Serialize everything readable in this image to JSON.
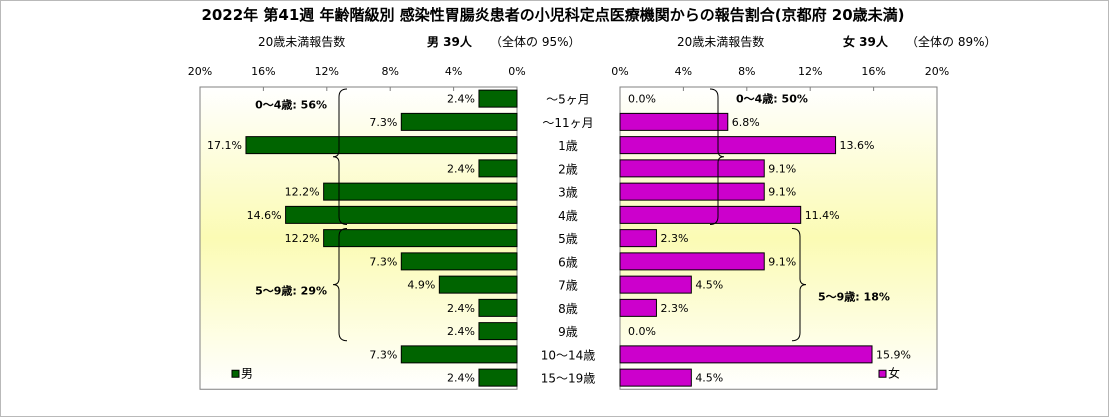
{
  "chart_data": {
    "type": "bar",
    "title": "2022年 第41週  年齢階級別 感染性胃腸炎患者の小児科定点医療機関からの報告割合(京都府 20歳未満)",
    "categories": [
      "～5ヶ月",
      "～11ヶ月",
      "1歳",
      "2歳",
      "3歳",
      "4歳",
      "5歳",
      "6歳",
      "7歳",
      "8歳",
      "9歳",
      "10～14歳",
      "15～19歳"
    ],
    "unit": "%",
    "xlim": [
      0,
      20
    ],
    "ticks": [
      0,
      4,
      8,
      12,
      16,
      20
    ],
    "series": [
      {
        "name": "男",
        "side": "left",
        "color": "#006400",
        "values": [
          2.4,
          7.3,
          17.1,
          2.4,
          12.2,
          14.6,
          12.2,
          7.3,
          4.9,
          2.4,
          2.4,
          7.3,
          2.4
        ],
        "subtitle": "20歳未満報告数",
        "count_label": "男  39人",
        "share_label": "（全体の   95%）",
        "groups": [
          {
            "label": "0～4歳: 56%",
            "from": 0,
            "to": 5
          },
          {
            "label": "5～9歳: 29%",
            "from": 6,
            "to": 10
          }
        ]
      },
      {
        "name": "女",
        "side": "right",
        "color": "#cc00cc",
        "values": [
          0.0,
          6.8,
          13.6,
          9.1,
          9.1,
          11.4,
          2.3,
          9.1,
          4.5,
          2.3,
          0.0,
          15.9,
          4.5
        ],
        "subtitle": "20歳未満報告数",
        "count_label": "女  39人",
        "share_label": "（全体の   89%）",
        "groups": [
          {
            "label": "0～4歳: 50%",
            "from": 0,
            "to": 5
          },
          {
            "label": "5～9歳: 18%",
            "from": 6,
            "to": 10
          }
        ]
      }
    ]
  }
}
